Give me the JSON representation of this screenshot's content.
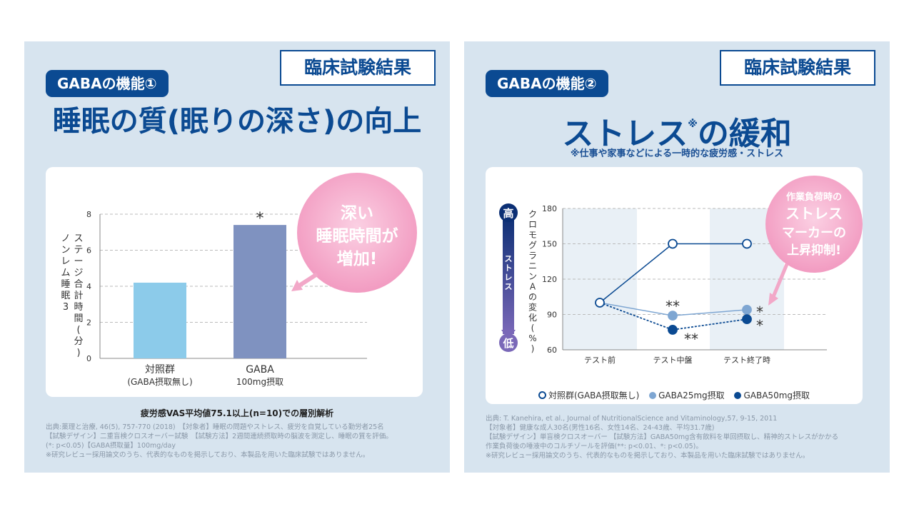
{
  "panel1": {
    "badge": "GABAの機能①",
    "result_label": "臨床試験結果",
    "title": "睡眠の質(眠りの深さ)の向上",
    "callout": [
      "深い",
      "睡眠時間が",
      "増加!"
    ],
    "caption": "疲労感VAS平均値75.1以上(n=10)での層別解析",
    "source_lines": [
      "出典:薬理と治療, 46(5), 757-770 (2018)　【対象者】睡眠の問題やストレス、疲労を自覚している勤労者25名",
      "【試験デザイン】二重盲検クロスオーバー試験　【試験方法】2週間連続摂取時の脳波を測定し、睡眠の質を評価。",
      "(*: p<0.05)【GABA摂取量】100mg/day",
      "※研究レビュー採用論文のうち、代表的なものを掲示しており、本製品を用いた臨床試験ではありません。"
    ],
    "colors": {
      "control_bar": "#8ccbea",
      "gaba_bar": "#7f92c0",
      "callout": "#f2a8c8"
    }
  },
  "panel2": {
    "badge": "GABAの機能②",
    "result_label": "臨床試験結果",
    "title_main": "ストレス",
    "title_mark": "※",
    "title_end": "の緩和",
    "subnote": "※仕事や家事などによる一時的な疲労感・ストレス",
    "callout": [
      "作業負荷時の",
      "ストレス",
      "マーカーの",
      "上昇抑制!"
    ],
    "scale_high": "高",
    "scale_mid": "ストレス",
    "scale_low": "低",
    "legend": [
      "対照群(GABA摂取無し)",
      "GABA25mg摂取",
      "GABA50mg摂取"
    ],
    "source_lines": [
      "出典: T. Kanehira, et al., Journal of NutritionalScience and Vitaminology,57, 9-15, 2011",
      "【対象者】健康な成人30名(男性16名、女性14名、24-43歳、平均31.7歳)",
      "【試験デザイン】単盲検クロスオーバー 【試験方法】GABA50mg含有飲料を単回摂取し、精神的ストレスがかかる",
      "作業負荷後の唾液中のコルチゾールを評価(**: p<0.01、*: p<0.05)。",
      "※研究レビュー採用論文のうち、代表的なものを掲示しており、本製品を用いた臨床試験ではありません。"
    ],
    "colors": {
      "control": "#0b4a92",
      "gaba25": "#7ea6d2",
      "gaba50": "#0b4a92"
    }
  },
  "chart_data": [
    {
      "type": "bar",
      "categories": [
        "対照群\n(GABA摂取無し)",
        "GABA\n100mg摂取"
      ],
      "values": [
        4.2,
        7.4
      ],
      "ylabel": "ステージ合計時間(分)\nノンレム睡眠3",
      "ylim": [
        0,
        8
      ],
      "yticks": [
        0,
        2,
        4,
        6,
        8
      ],
      "significance": [
        "",
        "*"
      ],
      "grid": true
    },
    {
      "type": "line",
      "x": [
        "テスト前",
        "テスト中盤",
        "テスト終了時"
      ],
      "ylabel": "クロモグラニンAの変化(%)",
      "ylim": [
        60,
        180
      ],
      "yticks": [
        60,
        90,
        120,
        150,
        180
      ],
      "grid": true,
      "legend_position": "bottom",
      "series": [
        {
          "name": "対照群(GABA摂取無し)",
          "values": [
            100,
            150,
            150
          ],
          "significance": [
            "",
            "",
            ""
          ]
        },
        {
          "name": "GABA25mg摂取",
          "values": [
            100,
            89,
            94
          ],
          "significance": [
            "",
            "**",
            "*"
          ]
        },
        {
          "name": "GABA50mg摂取",
          "values": [
            100,
            77,
            86
          ],
          "significance": [
            "",
            "**",
            "*"
          ]
        }
      ]
    }
  ]
}
